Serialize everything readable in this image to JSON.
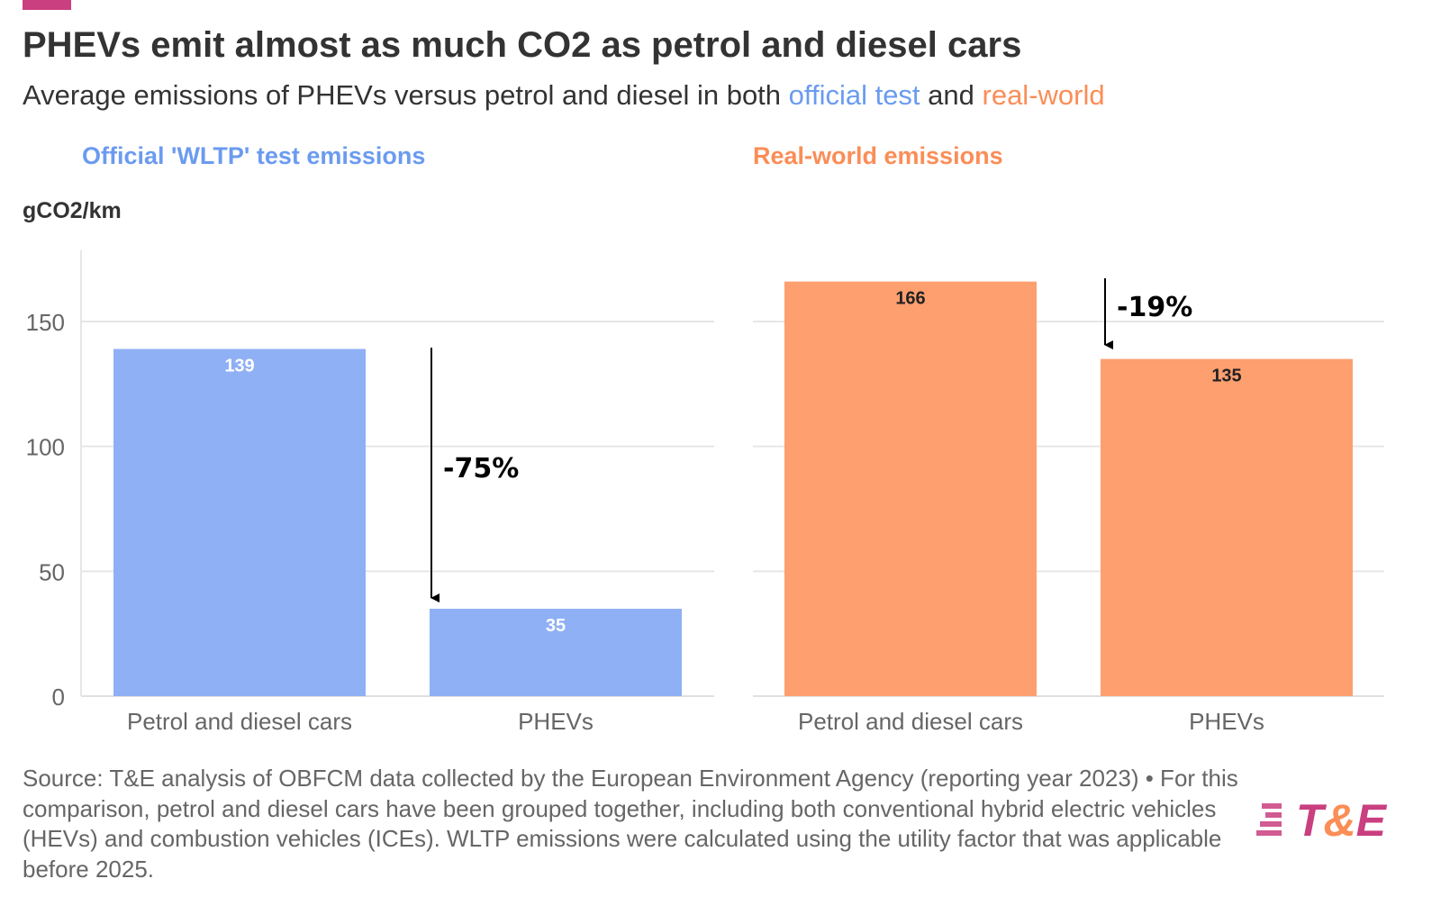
{
  "title": "PHEVs emit almost as much CO2 as petrol and diesel cars",
  "subtitle": {
    "prefix": "Average emissions of PHEVs versus petrol and diesel in both ",
    "official": "official test",
    "and": " and ",
    "real": "real-world"
  },
  "colors": {
    "official": "#8fb0f5",
    "real": "#fe9f70",
    "official_text": "#6b9bf0",
    "real_text": "#fb8d57",
    "brand": "#c93f7f"
  },
  "ylabel": "gCO2/km",
  "chart_data": [
    {
      "type": "bar",
      "title": "Official 'WLTP' test emissions",
      "ylabel": "gCO2/km",
      "categories": [
        "Petrol and diesel cars",
        "PHEVs"
      ],
      "values": [
        139,
        35
      ],
      "data_labels": [
        "139",
        "35"
      ],
      "ylim": [
        0,
        178
      ],
      "yticks": [
        0,
        50,
        100,
        150
      ],
      "ytick_labels": [
        "0",
        "50",
        "100",
        "150"
      ],
      "grid": true,
      "annotation": "-75%"
    },
    {
      "type": "bar",
      "title": "Real-world emissions",
      "categories": [
        "Petrol and diesel cars",
        "PHEVs"
      ],
      "values": [
        166,
        135
      ],
      "data_labels": [
        "166",
        "135"
      ],
      "ylim": [
        0,
        178
      ],
      "yticks": [
        0,
        50,
        100,
        150
      ],
      "grid": true,
      "annotation": "-19%"
    }
  ],
  "source": "Source: T&E analysis of OBFCM data collected by the European Environment Agency (reporting year 2023) • For this comparison, petrol and diesel cars have been grouped together, including both conventional hybrid electric vehicles (HEVs) and combustion vehicles (ICEs). WLTP emissions were calculated using the utility factor that was applicable before 2025.",
  "logo": "T&E"
}
